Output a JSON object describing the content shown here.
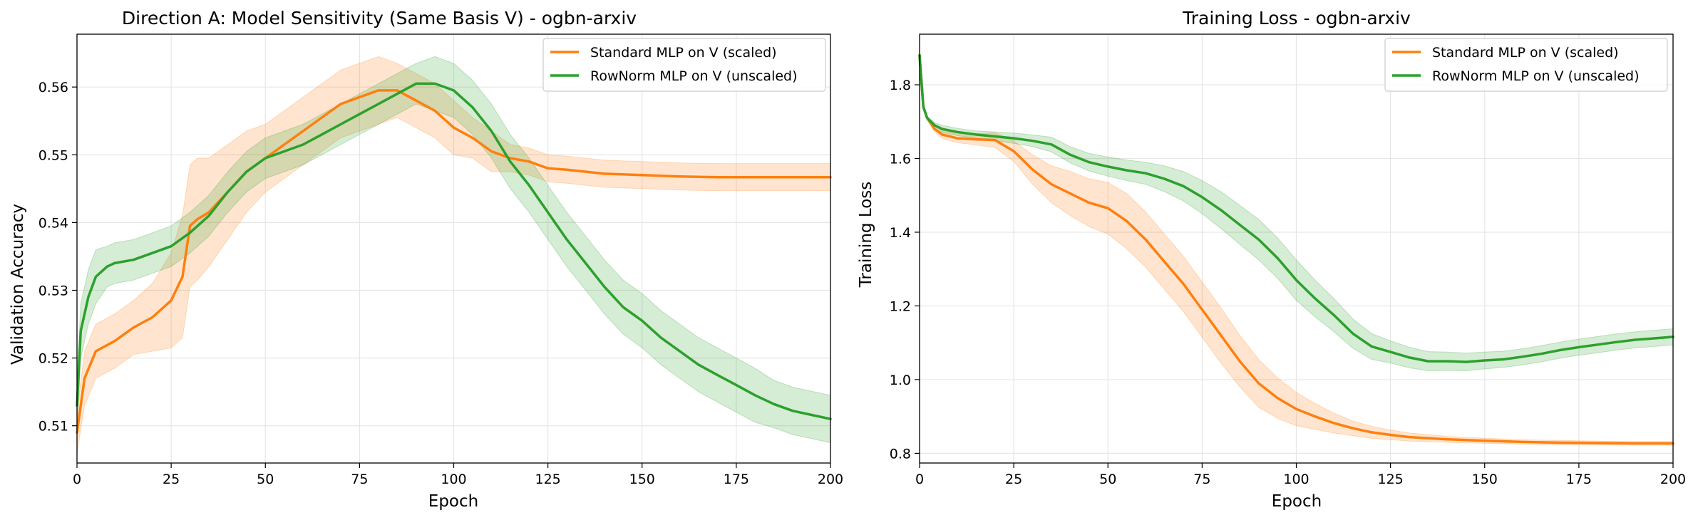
{
  "colors": {
    "standard": "#ff7f0e",
    "rownorm": "#2ca02c"
  },
  "chart_data": [
    {
      "type": "line",
      "title": "Direction A: Model Sensitivity (Same Basis V) - ogbn-arxiv",
      "xlabel": "Epoch",
      "ylabel": "Validation Accuracy",
      "xlim": [
        0,
        200
      ],
      "ylim": [
        0.5045,
        0.5678
      ],
      "xticks": [
        0,
        25,
        50,
        75,
        100,
        125,
        150,
        175,
        200
      ],
      "yticks": [
        0.51,
        0.52,
        0.53,
        0.54,
        0.55,
        0.56
      ],
      "ytick_labels": [
        "0.51",
        "0.52",
        "0.53",
        "0.54",
        "0.55",
        "0.56"
      ],
      "grid": true,
      "legend": "top-right",
      "series": [
        {
          "name": "Standard MLP on V (scaled)",
          "color": "#ff7f0e",
          "x": [
            0,
            2,
            5,
            10,
            15,
            20,
            25,
            28,
            30,
            32,
            35,
            40,
            45,
            50,
            55,
            60,
            65,
            70,
            75,
            80,
            85,
            90,
            95,
            100,
            105,
            110,
            115,
            120,
            125,
            130,
            140,
            150,
            160,
            170,
            180,
            190,
            200
          ],
          "y": [
            0.509,
            0.517,
            0.521,
            0.5225,
            0.5245,
            0.526,
            0.5285,
            0.532,
            0.5395,
            0.5405,
            0.5415,
            0.5445,
            0.5475,
            0.5495,
            0.5515,
            0.5535,
            0.5555,
            0.5575,
            0.5585,
            0.5595,
            0.5595,
            0.558,
            0.5565,
            0.554,
            0.5525,
            0.5505,
            0.5495,
            0.549,
            0.548,
            0.5478,
            0.5472,
            0.547,
            0.5468,
            0.5467,
            0.5467,
            0.5467,
            0.5467
          ],
          "band": [
            0.003,
            0.004,
            0.004,
            0.004,
            0.004,
            0.005,
            0.007,
            0.009,
            0.009,
            0.009,
            0.008,
            0.007,
            0.006,
            0.005,
            0.005,
            0.005,
            0.005,
            0.005,
            0.005,
            0.005,
            0.004,
            0.004,
            0.004,
            0.004,
            0.003,
            0.003,
            0.002,
            0.002,
            0.002,
            0.002,
            0.002,
            0.002,
            0.002,
            0.002,
            0.002,
            0.002,
            0.002
          ]
        },
        {
          "name": "RowNorm MLP on V (unscaled)",
          "color": "#2ca02c",
          "x": [
            0,
            1,
            3,
            5,
            8,
            10,
            15,
            20,
            25,
            30,
            35,
            40,
            45,
            50,
            55,
            60,
            65,
            70,
            75,
            80,
            85,
            90,
            95,
            100,
            105,
            110,
            115,
            120,
            125,
            130,
            135,
            140,
            145,
            150,
            155,
            160,
            165,
            170,
            175,
            180,
            185,
            190,
            195,
            200
          ],
          "y": [
            0.513,
            0.524,
            0.529,
            0.532,
            0.5335,
            0.534,
            0.5345,
            0.5355,
            0.5365,
            0.5385,
            0.541,
            0.5445,
            0.5475,
            0.5495,
            0.5505,
            0.5515,
            0.553,
            0.5545,
            0.556,
            0.5575,
            0.559,
            0.5605,
            0.5605,
            0.5595,
            0.557,
            0.5535,
            0.549,
            0.5455,
            0.5415,
            0.5375,
            0.534,
            0.5305,
            0.5275,
            0.5255,
            0.523,
            0.521,
            0.519,
            0.5175,
            0.516,
            0.5145,
            0.5132,
            0.5122,
            0.5116,
            0.511
          ],
          "band": [
            0.004,
            0.004,
            0.004,
            0.004,
            0.003,
            0.003,
            0.003,
            0.003,
            0.003,
            0.003,
            0.003,
            0.003,
            0.003,
            0.003,
            0.003,
            0.003,
            0.003,
            0.003,
            0.003,
            0.003,
            0.003,
            0.003,
            0.004,
            0.004,
            0.004,
            0.004,
            0.004,
            0.004,
            0.004,
            0.004,
            0.004,
            0.004,
            0.004,
            0.004,
            0.004,
            0.004,
            0.004,
            0.004,
            0.004,
            0.004,
            0.0035,
            0.0035,
            0.0035,
            0.0035
          ]
        }
      ]
    },
    {
      "type": "line",
      "title": "Training Loss - ogbn-arxiv",
      "xlabel": "Epoch",
      "ylabel": "Training Loss",
      "xlim": [
        0,
        200
      ],
      "ylim": [
        0.7737,
        1.9373
      ],
      "xticks": [
        0,
        25,
        50,
        75,
        100,
        125,
        150,
        175,
        200
      ],
      "yticks": [
        0.8,
        1.0,
        1.2,
        1.4,
        1.6,
        1.8
      ],
      "ytick_labels": [
        "0.8",
        "1.0",
        "1.2",
        "1.4",
        "1.6",
        "1.8"
      ],
      "grid": true,
      "legend": "top-right",
      "series": [
        {
          "name": "Standard MLP on V (scaled)",
          "color": "#ff7f0e",
          "x": [
            0,
            1,
            2,
            4,
            6,
            10,
            15,
            20,
            25,
            30,
            35,
            40,
            45,
            50,
            55,
            60,
            65,
            70,
            75,
            80,
            85,
            90,
            95,
            100,
            105,
            110,
            115,
            120,
            125,
            130,
            140,
            150,
            160,
            170,
            180,
            190,
            200
          ],
          "y": [
            1.88,
            1.74,
            1.71,
            1.68,
            1.665,
            1.655,
            1.652,
            1.65,
            1.62,
            1.57,
            1.53,
            1.505,
            1.48,
            1.465,
            1.43,
            1.38,
            1.32,
            1.26,
            1.19,
            1.12,
            1.05,
            0.99,
            0.95,
            0.92,
            0.9,
            0.882,
            0.868,
            0.857,
            0.85,
            0.844,
            0.838,
            0.834,
            0.831,
            0.829,
            0.828,
            0.827,
            0.827
          ]
        },
        {
          "name": "RowNorm MLP on V (unscaled)",
          "color": "#2ca02c",
          "x": [
            0,
            1,
            2,
            4,
            6,
            10,
            15,
            20,
            25,
            30,
            35,
            40,
            45,
            50,
            55,
            60,
            65,
            70,
            75,
            80,
            85,
            90,
            95,
            100,
            105,
            110,
            115,
            120,
            125,
            130,
            135,
            140,
            145,
            150,
            155,
            160,
            165,
            170,
            175,
            180,
            185,
            190,
            195,
            200
          ],
          "y": [
            1.88,
            1.74,
            1.71,
            1.69,
            1.68,
            1.672,
            1.665,
            1.66,
            1.655,
            1.648,
            1.638,
            1.61,
            1.59,
            1.578,
            1.568,
            1.56,
            1.545,
            1.525,
            1.495,
            1.46,
            1.42,
            1.38,
            1.33,
            1.27,
            1.22,
            1.175,
            1.125,
            1.09,
            1.075,
            1.06,
            1.05,
            1.05,
            1.048,
            1.052,
            1.055,
            1.062,
            1.07,
            1.08,
            1.088,
            1.095,
            1.102,
            1.108,
            1.112,
            1.116
          ]
        }
      ],
      "bands": [
        [
          0.0,
          0.0,
          0.005,
          0.008,
          0.01,
          0.012,
          0.015,
          0.02,
          0.028,
          0.04,
          0.05,
          0.06,
          0.065,
          0.07,
          0.075,
          0.075,
          0.075,
          0.075,
          0.075,
          0.075,
          0.07,
          0.065,
          0.055,
          0.045,
          0.035,
          0.027,
          0.02,
          0.016,
          0.013,
          0.011,
          0.008,
          0.007,
          0.006,
          0.006,
          0.005,
          0.005,
          0.005
        ],
        [
          0.0,
          0.0,
          0.005,
          0.008,
          0.01,
          0.01,
          0.01,
          0.012,
          0.014,
          0.016,
          0.02,
          0.022,
          0.024,
          0.026,
          0.028,
          0.03,
          0.035,
          0.04,
          0.045,
          0.05,
          0.053,
          0.055,
          0.055,
          0.055,
          0.05,
          0.045,
          0.04,
          0.035,
          0.03,
          0.028,
          0.026,
          0.025,
          0.024,
          0.023,
          0.022,
          0.022,
          0.022,
          0.022,
          0.022,
          0.022,
          0.022,
          0.022,
          0.022,
          0.022
        ]
      ]
    }
  ]
}
